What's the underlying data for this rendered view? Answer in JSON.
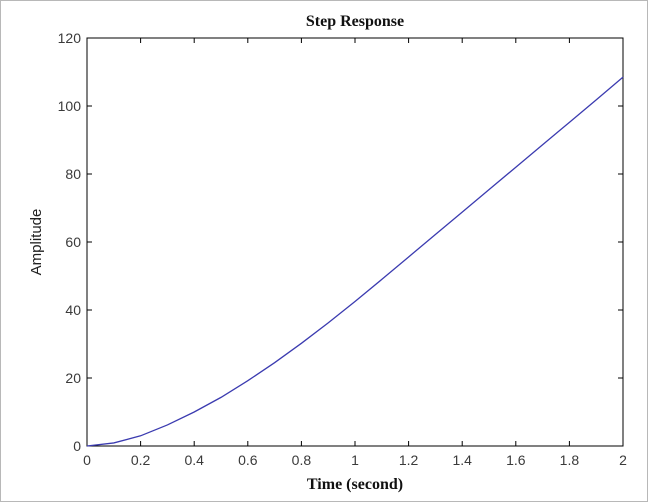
{
  "chart_data": {
    "type": "line",
    "title": "Step Response",
    "xlabel": "Time (second)",
    "ylabel": "Amplitude",
    "xlim": [
      0,
      2
    ],
    "ylim": [
      0,
      120
    ],
    "xticks": [
      "0",
      "0.2",
      "0.4",
      "0.6",
      "0.8",
      "1",
      "1.2",
      "1.4",
      "1.6",
      "1.8",
      "2"
    ],
    "yticks": [
      "0",
      "20",
      "40",
      "60",
      "80",
      "100",
      "120"
    ],
    "grid": false,
    "series": [
      {
        "color": "#3b3bb0",
        "x": [
          0,
          0.1,
          0.2,
          0.3,
          0.4,
          0.5,
          0.6,
          0.7,
          0.8,
          0.9,
          1.0,
          1.1,
          1.2,
          1.3,
          1.4,
          1.5,
          1.6,
          1.7,
          1.8,
          1.9,
          2.0
        ],
        "y": [
          0,
          0.9,
          3.0,
          6.2,
          10.0,
          14.3,
          19.2,
          24.5,
          30.2,
          36.2,
          42.5,
          49.0,
          55.6,
          62.2,
          68.8,
          75.4,
          82.0,
          88.6,
          95.2,
          101.8,
          108.5
        ]
      }
    ]
  }
}
